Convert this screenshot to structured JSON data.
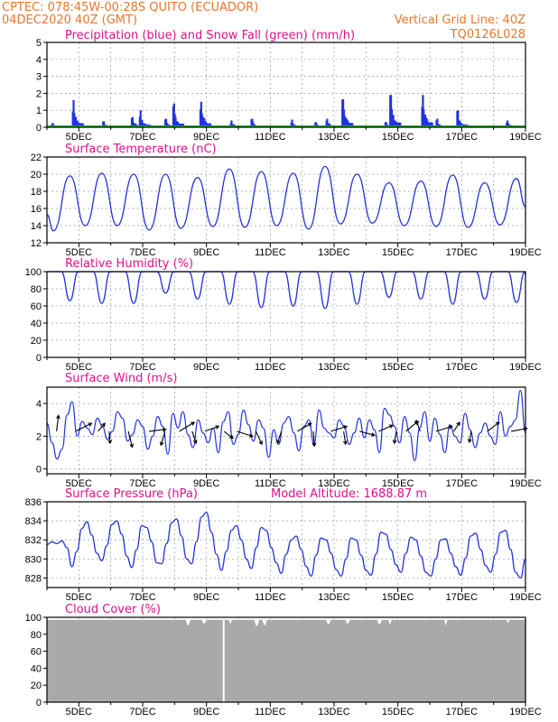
{
  "header": {
    "station": "CPTEC:   078:45W-00:28S   QUITO (ECUADOR)",
    "init": "04DEC2020 40Z (GMT)",
    "grid_note": "Vertical Grid Line: 40Z",
    "code": "TQ0126L028"
  },
  "colors": {
    "header": "#e8762a",
    "panel_title": "#e0108a",
    "series": "#2233dd",
    "snow": "#22aa22",
    "cloud": "#a9a9a9",
    "wind_arrow": "#000000"
  },
  "chart_data": [
    {
      "id": "precip",
      "type": "bar",
      "title": "Precipitation (blue) and Snow Fall (green) (mm/h)",
      "ylim": [
        0,
        5
      ],
      "yticks": [
        0,
        1,
        2,
        3,
        4,
        5
      ],
      "xlabels": [
        "5DEC",
        "7DEC",
        "9DEC",
        "11DEC",
        "13DEC",
        "15DEC",
        "17DEC",
        "19DEC"
      ],
      "grid": true,
      "bursts": [
        {
          "day": 4.25,
          "peak": 0.25
        },
        {
          "day": 4.9,
          "peak": 1.6
        },
        {
          "day": 5.85,
          "peak": 0.35
        },
        {
          "day": 6.75,
          "peak": 0.6
        },
        {
          "day": 7.0,
          "peak": 1.0
        },
        {
          "day": 7.8,
          "peak": 0.5
        },
        {
          "day": 8.05,
          "peak": 1.4
        },
        {
          "day": 8.9,
          "peak": 1.5
        },
        {
          "day": 9.85,
          "peak": 0.4
        },
        {
          "day": 10.5,
          "peak": 0.5
        },
        {
          "day": 11.75,
          "peak": 0.45
        },
        {
          "day": 12.5,
          "peak": 0.3
        },
        {
          "day": 12.85,
          "peak": 0.5
        },
        {
          "day": 13.35,
          "peak": 1.65
        },
        {
          "day": 14.7,
          "peak": 0.3
        },
        {
          "day": 14.85,
          "peak": 1.9
        },
        {
          "day": 15.85,
          "peak": 1.9
        },
        {
          "day": 16.3,
          "peak": 0.5
        },
        {
          "day": 16.95,
          "peak": 1.0
        },
        {
          "day": 18.5,
          "peak": 0.4
        }
      ],
      "snow": 0
    },
    {
      "id": "temperature",
      "type": "line",
      "title": "Surface Temperature (nC)",
      "ylim": [
        12,
        22
      ],
      "yticks": [
        12,
        14,
        16,
        18,
        20,
        22
      ],
      "xlabels": [
        "5DEC",
        "7DEC",
        "9DEC",
        "11DEC",
        "13DEC",
        "15DEC",
        "17DEC",
        "19DEC"
      ],
      "grid": true,
      "start": 15.3,
      "daily_max": [
        19.8,
        20.1,
        20.0,
        20.0,
        19.6,
        20.6,
        20.3,
        20.1,
        20.9,
        20.0,
        19.0,
        19.2,
        19.9,
        19.0,
        19.5
      ],
      "daily_min": [
        13.4,
        14.0,
        14.0,
        13.5,
        13.7,
        13.9,
        13.8,
        14.0,
        13.6,
        14.2,
        14.3,
        14.0,
        13.9,
        13.8,
        14.1
      ],
      "end": 16.2
    },
    {
      "id": "humidity",
      "type": "line",
      "title": "Relative Humidity (%)",
      "ylim": [
        0,
        100
      ],
      "yticks": [
        0,
        20,
        40,
        60,
        80,
        100
      ],
      "xlabels": [
        "5DEC",
        "7DEC",
        "9DEC",
        "11DEC",
        "13DEC",
        "15DEC",
        "17DEC",
        "19DEC"
      ],
      "grid": true,
      "daily_min": [
        66,
        63,
        63,
        75,
        68,
        62,
        58,
        60,
        57,
        62,
        70,
        68,
        62,
        68,
        64
      ],
      "plateau": 100,
      "end": 96
    },
    {
      "id": "wind",
      "type": "line",
      "title": "Surface Wind (m/s)",
      "ylim": [
        -0.3,
        5
      ],
      "yticks": [
        0,
        2,
        4
      ],
      "xlabels": [
        "5DEC",
        "7DEC",
        "9DEC",
        "11DEC",
        "13DEC",
        "15DEC",
        "17DEC",
        "19DEC"
      ],
      "grid": true,
      "speed": [
        2.8,
        1.6,
        0.6,
        1.2,
        3.3,
        4.1,
        2.0,
        2.9,
        2.5,
        2.1,
        3.1,
        2.6,
        1.8,
        2.3,
        3.5,
        3.1,
        1.7,
        2.1,
        3.0,
        2.6,
        1.2,
        2.0,
        3.2,
        2.6,
        0.9,
        3.4,
        2.5,
        3.5,
        2.1,
        1.3,
        3.0,
        2.2,
        1.6,
        2.5,
        1.0,
        2.9,
        3.5,
        1.5,
        2.1,
        3.6,
        2.7,
        1.7,
        3.0,
        2.5,
        0.7,
        2.4,
        1.5,
        2.8,
        3.2,
        2.2,
        1.1,
        2.6,
        3.0,
        1.5,
        3.6,
        2.5,
        2.2,
        1.9,
        3.0,
        2.6,
        1.5,
        2.2,
        3.1,
        1.9,
        3.0,
        2.4,
        1.0,
        3.7,
        3.3,
        2.6,
        1.6,
        3.2,
        2.2,
        0.5,
        2.5,
        3.5,
        1.7,
        3.1,
        2.1,
        1.0,
        2.7,
        2.0,
        1.6,
        3.4,
        2.4,
        1.3,
        2.2,
        2.8,
        2.0,
        1.5,
        3.5,
        2.0,
        2.6,
        3.0,
        4.8,
        2.2
      ],
      "arrows": [
        {
          "day": 4.3,
          "u": 0.2,
          "v": 1.6
        },
        {
          "day": 4.9,
          "u": 1.6,
          "v": 0.8
        },
        {
          "day": 5.6,
          "u": 0.7,
          "v": 0.8
        },
        {
          "day": 5.95,
          "u": 0.1,
          "v": -1.2
        },
        {
          "day": 6.55,
          "u": 0.4,
          "v": -1.6
        },
        {
          "day": 7.2,
          "u": 1.7,
          "v": 0.2
        },
        {
          "day": 7.7,
          "u": -0.4,
          "v": -1.4
        },
        {
          "day": 8.15,
          "u": 1.5,
          "v": 0.9
        },
        {
          "day": 8.55,
          "u": 0.4,
          "v": -1.2
        },
        {
          "day": 8.95,
          "u": 1.4,
          "v": 0.5
        },
        {
          "day": 9.55,
          "u": 0.9,
          "v": -0.7
        },
        {
          "day": 9.95,
          "u": 1.6,
          "v": -0.5
        },
        {
          "day": 10.55,
          "u": 0.6,
          "v": -1.3
        },
        {
          "day": 11.35,
          "u": -0.4,
          "v": -1.2
        },
        {
          "day": 11.85,
          "u": 1.4,
          "v": 0.8
        },
        {
          "day": 12.35,
          "u": 0.1,
          "v": -1.5
        },
        {
          "day": 12.9,
          "u": 1.6,
          "v": 0.5
        },
        {
          "day": 13.3,
          "u": 0.2,
          "v": -1.3
        },
        {
          "day": 13.8,
          "u": 1.5,
          "v": -0.4
        },
        {
          "day": 14.4,
          "u": 1.4,
          "v": 0.6
        },
        {
          "day": 14.95,
          "u": -0.2,
          "v": -1.2
        },
        {
          "day": 15.25,
          "u": 1.2,
          "v": 1.0
        },
        {
          "day": 15.7,
          "u": -0.4,
          "v": 1.1
        },
        {
          "day": 16.2,
          "u": 1.6,
          "v": 0.5
        },
        {
          "day": 16.75,
          "u": 0.6,
          "v": 0.9
        },
        {
          "day": 17.3,
          "u": -0.2,
          "v": -1.1
        },
        {
          "day": 17.8,
          "u": 1.2,
          "v": 0.9
        },
        {
          "day": 18.55,
          "u": 1.6,
          "v": 0.3
        }
      ]
    },
    {
      "id": "pressure",
      "type": "line",
      "title": "Surface Pressure (hPa)",
      "subtitle": "Model Altitude: 1688.87 m",
      "ylim": [
        827,
        836
      ],
      "yticks": [
        828,
        830,
        832,
        834,
        836
      ],
      "xlabels": [
        "5DEC",
        "7DEC",
        "9DEC",
        "11DEC",
        "13DEC",
        "15DEC",
        "17DEC",
        "19DEC"
      ],
      "grid": true,
      "values": [
        831.5,
        831.8,
        831.6,
        831.9,
        831.2,
        829.2,
        830.8,
        833.2,
        833.9,
        832.5,
        830.6,
        829.8,
        831.4,
        833.6,
        834.0,
        832.6,
        830.3,
        829.1,
        831.0,
        833.5,
        833.3,
        831.8,
        829.6,
        829.5,
        831.6,
        833.8,
        834.2,
        832.4,
        830.0,
        829.5,
        831.8,
        834.4,
        834.9,
        832.8,
        830.5,
        828.8,
        830.8,
        833.0,
        833.5,
        832.0,
        830.0,
        829.0,
        831.2,
        833.3,
        833.0,
        831.2,
        829.6,
        828.5,
        830.5,
        832.0,
        832.4,
        831.0,
        829.2,
        828.2,
        830.4,
        832.2,
        832.0,
        830.6,
        828.9,
        828.2,
        830.0,
        832.2,
        832.0,
        830.4,
        828.8,
        828.3,
        830.5,
        832.8,
        832.6,
        831.0,
        829.4,
        828.6,
        830.6,
        832.3,
        832.0,
        830.3,
        828.6,
        828.2,
        830.0,
        832.0,
        832.1,
        830.6,
        829.2,
        828.3,
        830.1,
        832.4,
        832.7,
        831.0,
        829.3,
        828.6,
        830.5,
        832.8,
        833.0,
        831.0,
        828.6,
        828.0,
        830.0
      ]
    },
    {
      "id": "cloud",
      "type": "area",
      "title": "Cloud Cover (%)",
      "ylim": [
        0,
        100
      ],
      "yticks": [
        0,
        20,
        40,
        60,
        80,
        100
      ],
      "xlabels": [
        "5DEC",
        "7DEC",
        "9DEC",
        "11DEC",
        "13DEC",
        "15DEC",
        "17DEC",
        "19DEC"
      ],
      "grid": true,
      "baseline": 97,
      "dips": [
        {
          "day": 8.45,
          "value": 91
        },
        {
          "day": 8.95,
          "value": 93
        },
        {
          "day": 9.75,
          "value": 92
        },
        {
          "day": 10.6,
          "value": 90
        },
        {
          "day": 10.8,
          "value": 91
        },
        {
          "day": 12.8,
          "value": 92
        },
        {
          "day": 13.45,
          "value": 93
        },
        {
          "day": 14.45,
          "value": 92
        },
        {
          "day": 14.75,
          "value": 91
        },
        {
          "day": 16.5,
          "value": 90
        },
        {
          "day": 18.45,
          "value": 93
        }
      ],
      "gap_day": 9.54
    }
  ]
}
